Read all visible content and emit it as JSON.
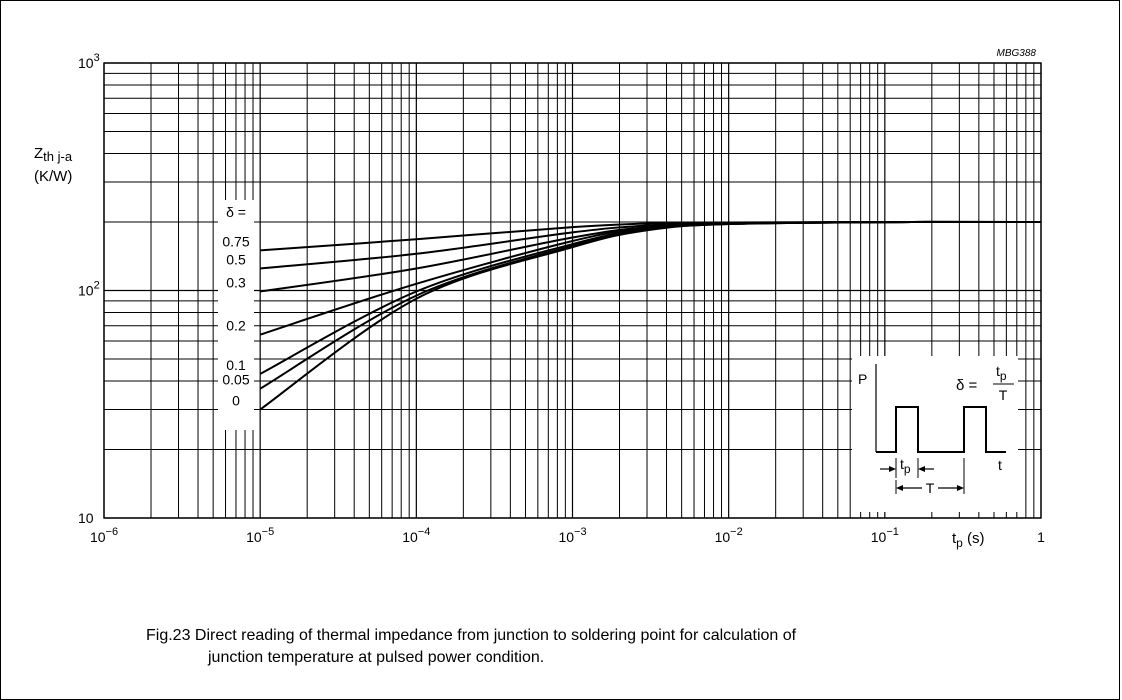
{
  "figure": {
    "code": "MBG388",
    "caption_line1": "Fig.23  Direct reading of thermal impedance from junction to soldering point for calculation of",
    "caption_line2": "junction temperature at pulsed power condition."
  },
  "chart_data": {
    "type": "line",
    "xscale": "log",
    "yscale": "log",
    "xlim": [
      1e-06,
      1
    ],
    "ylim": [
      10,
      1000
    ],
    "grid": true,
    "ylabel_main": "Z",
    "ylabel_sub": "th j-a",
    "ylabel_unit": "(K/W)",
    "xlabel_main": "t",
    "xlabel_sub": "p",
    "xlabel_unit": "(s)",
    "xticks": [
      {
        "base": "10",
        "exp": "−6"
      },
      {
        "base": "10",
        "exp": "−5"
      },
      {
        "base": "10",
        "exp": "−4"
      },
      {
        "base": "10",
        "exp": "−3"
      },
      {
        "base": "10",
        "exp": "−2"
      },
      {
        "base": "10",
        "exp": "−1"
      },
      {
        "base": "1",
        "exp": ""
      }
    ],
    "yticks": [
      {
        "base": "10",
        "exp": ""
      },
      {
        "base": "10",
        "exp": "2"
      },
      {
        "base": "10",
        "exp": "3"
      }
    ],
    "legend_title": "δ =",
    "series": [
      {
        "name": "0.75",
        "points": [
          [
            1e-05,
            150
          ],
          [
            0.0001,
            168
          ],
          [
            0.001,
            190
          ],
          [
            0.003,
            197
          ],
          [
            0.01,
            199
          ],
          [
            0.15,
            200
          ],
          [
            1,
            200
          ]
        ]
      },
      {
        "name": "0.5",
        "points": [
          [
            1e-05,
            125
          ],
          [
            0.0001,
            145
          ],
          [
            0.001,
            180
          ],
          [
            0.003,
            193
          ],
          [
            0.01,
            198
          ],
          [
            0.15,
            200
          ],
          [
            1,
            200
          ]
        ]
      },
      {
        "name": "0.3",
        "points": [
          [
            1e-05,
            99
          ],
          [
            0.0001,
            125
          ],
          [
            0.001,
            171
          ],
          [
            0.003,
            190
          ],
          [
            0.01,
            197
          ],
          [
            0.15,
            200
          ],
          [
            1,
            200
          ]
        ]
      },
      {
        "name": "0.2",
        "points": [
          [
            1e-05,
            64
          ],
          [
            0.0001,
            107
          ],
          [
            0.001,
            165
          ],
          [
            0.003,
            188
          ],
          [
            0.01,
            197
          ],
          [
            0.15,
            200
          ],
          [
            1,
            200
          ]
        ]
      },
      {
        "name": "0.1",
        "points": [
          [
            1e-05,
            43
          ],
          [
            0.0001,
            99
          ],
          [
            0.001,
            160
          ],
          [
            0.003,
            186
          ],
          [
            0.01,
            196
          ],
          [
            0.15,
            200
          ],
          [
            1,
            200
          ]
        ]
      },
      {
        "name": "0.05",
        "points": [
          [
            1e-05,
            37
          ],
          [
            0.0001,
            95
          ],
          [
            0.001,
            157
          ],
          [
            0.003,
            185
          ],
          [
            0.01,
            196
          ],
          [
            0.15,
            200
          ],
          [
            1,
            200
          ]
        ]
      },
      {
        "name": "0",
        "points": [
          [
            1e-05,
            30
          ],
          [
            0.0001,
            92
          ],
          [
            0.001,
            155
          ],
          [
            0.003,
            184
          ],
          [
            0.01,
            196
          ],
          [
            0.15,
            200
          ],
          [
            1,
            200
          ]
        ]
      }
    ],
    "inset": {
      "p_label": "P",
      "delta": "δ =",
      "frac_num_main": "t",
      "frac_num_sub": "p",
      "frac_den": "T",
      "tp_main": "t",
      "tp_sub": "p",
      "T_label": "T",
      "t_label": "t"
    }
  }
}
